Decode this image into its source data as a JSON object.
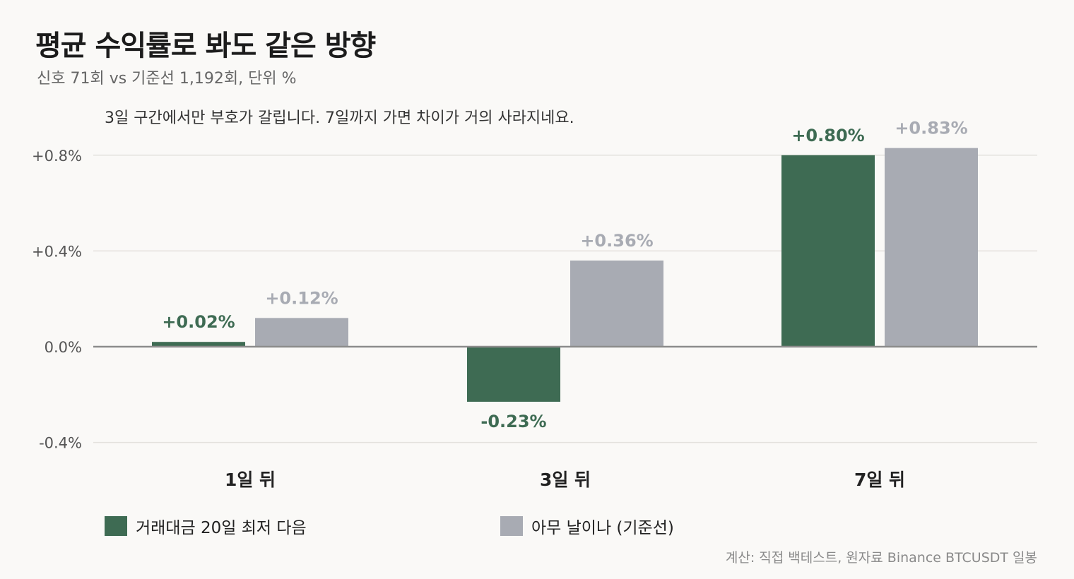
{
  "header": {
    "title": "평균 수익률로 봐도 같은 방향",
    "subtitle": "신호 71회 vs 기준선 1,192회, 단위 %"
  },
  "annotation": "3일 구간에서만 부호가 갈립니다. 7일까지 가면 차이가 거의 사라지네요.",
  "colors": {
    "signal": "#3e6b53",
    "baseline": "#a8abb3",
    "grid": "#e3e1dd",
    "zero_line": "#8c8c8c",
    "tick_text": "#555555"
  },
  "legend": {
    "signal_label": "거래대금 20일 최저 다음",
    "baseline_label": "아무 날이나 (기준선)"
  },
  "source": "계산: 직접 백테스트, 원자료 Binance BTCUSDT 일봉",
  "chart_data": {
    "type": "bar",
    "title": "평균 수익률로 봐도 같은 방향",
    "subtitle": "신호 71회 vs 기준선 1,192회, 단위 %",
    "categories": [
      "1일 뒤",
      "3일 뒤",
      "7일 뒤"
    ],
    "series": [
      {
        "name": "거래대금 20일 최저 다음",
        "values": [
          0.02,
          -0.23,
          0.8
        ],
        "labels": [
          "+0.02%",
          "-0.23%",
          "+0.80%"
        ]
      },
      {
        "name": "아무 날이나 (기준선)",
        "values": [
          0.12,
          0.36,
          0.83
        ],
        "labels": [
          "+0.12%",
          "+0.36%",
          "+0.83%"
        ]
      }
    ],
    "yticks": [
      0.8,
      0.4,
      0.0,
      -0.4
    ],
    "ytick_labels": [
      "+0.8%",
      "+0.4%",
      "0.0%",
      "-0.4%"
    ],
    "ylim": [
      -0.4,
      0.8
    ],
    "xlabel": "",
    "ylabel": "",
    "grid": true,
    "legend_position": "bottom-left"
  }
}
